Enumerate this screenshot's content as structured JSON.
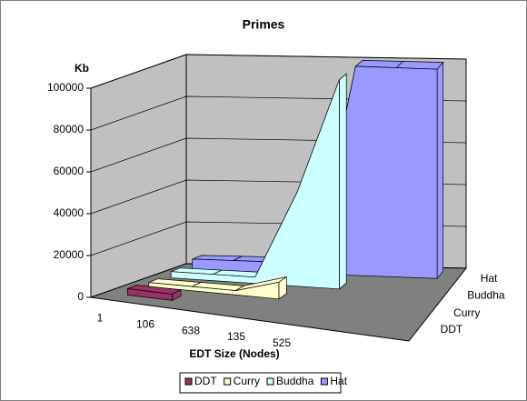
{
  "chart_data": {
    "type": "area3d",
    "title": "Primes",
    "y_label": "Kb",
    "x_label": "EDT Size (Nodes)",
    "categories": [
      "1",
      "106",
      "638",
      "135",
      "525",
      null,
      null
    ],
    "series": [
      {
        "name": "DDT",
        "color": "#993366",
        "values": [
          3000,
          3000,
          null,
          null,
          null,
          null,
          null
        ]
      },
      {
        "name": "Curry",
        "color": "#ffffcc",
        "values": [
          2000,
          2000,
          2000,
          8000,
          null,
          null,
          null
        ]
      },
      {
        "name": "Buddha",
        "color": "#ccffff",
        "values": [
          3000,
          3000,
          3000,
          45000,
          100000,
          null,
          null
        ]
      },
      {
        "name": "Hat",
        "color": "#9999ff",
        "values": [
          5000,
          5000,
          5000,
          5000,
          100000,
          100000,
          100000
        ]
      }
    ],
    "ylim": [
      0,
      100000
    ],
    "yticks": [
      0,
      20000,
      40000,
      60000,
      80000,
      100000
    ],
    "grid": true,
    "legend": "bottom"
  }
}
